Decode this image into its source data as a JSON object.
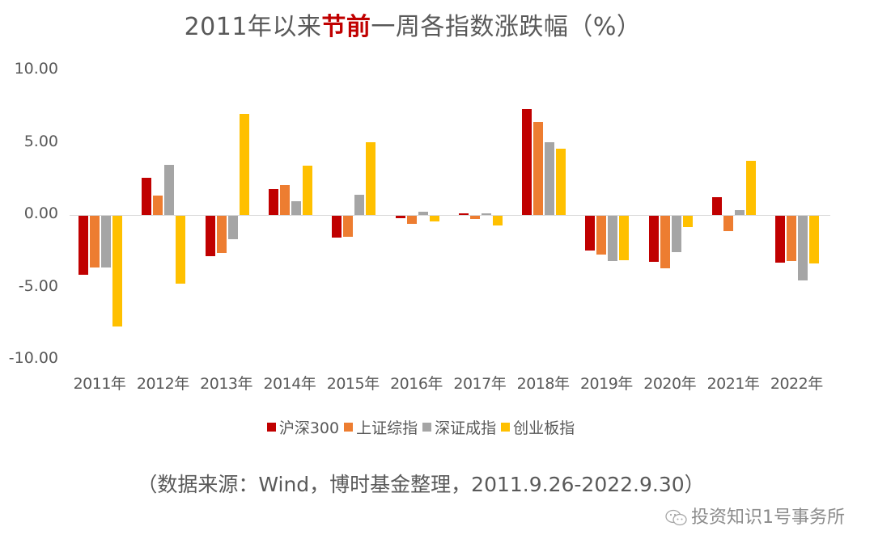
{
  "title": {
    "prefix": "2011年以来",
    "highlight": "节前",
    "suffix": "一周各指数涨跌幅（%）"
  },
  "chart_data": {
    "type": "bar",
    "title": "2011年以来节前一周各指数涨跌幅（%）",
    "xlabel": "",
    "ylabel": "",
    "ylim": [
      -10,
      10
    ],
    "yticks": [
      "10.00",
      "5.00",
      "0.00",
      "-5.00",
      "-10.00"
    ],
    "grid": false,
    "legend_position": "bottom",
    "categories": [
      "2011年",
      "2012年",
      "2013年",
      "2014年",
      "2015年",
      "2016年",
      "2017年",
      "2018年",
      "2019年",
      "2020年",
      "2021年",
      "2022年"
    ],
    "series": [
      {
        "name": "沪深300",
        "color": "#c00000",
        "values": [
          -4.06,
          2.57,
          -2.8,
          1.77,
          -1.49,
          -0.18,
          0.13,
          7.3,
          -2.4,
          -3.17,
          1.23,
          -3.22
        ]
      },
      {
        "name": "上证综指",
        "color": "#ed7d31",
        "values": [
          -3.6,
          1.34,
          -2.55,
          2.08,
          -1.45,
          -0.56,
          -0.22,
          6.44,
          -2.68,
          -3.61,
          -1.06,
          -3.13
        ]
      },
      {
        "name": "深证成指",
        "color": "#a5a5a5",
        "values": [
          -3.6,
          3.46,
          -1.63,
          0.97,
          1.4,
          0.23,
          0.1,
          5.03,
          -3.11,
          -2.51,
          0.35,
          -4.47
        ]
      },
      {
        "name": "创业板指",
        "color": "#ffc000",
        "values": [
          -7.67,
          -4.7,
          6.98,
          3.39,
          5.03,
          -0.4,
          -0.67,
          4.58,
          -3.07,
          -0.78,
          3.73,
          -3.28
        ]
      }
    ]
  },
  "source": "（数据来源：Wind，博时基金整理，2011.9.26-2022.9.30）",
  "watermark": {
    "icon": "wechat-icon",
    "text": "投资知识1号事务所"
  }
}
